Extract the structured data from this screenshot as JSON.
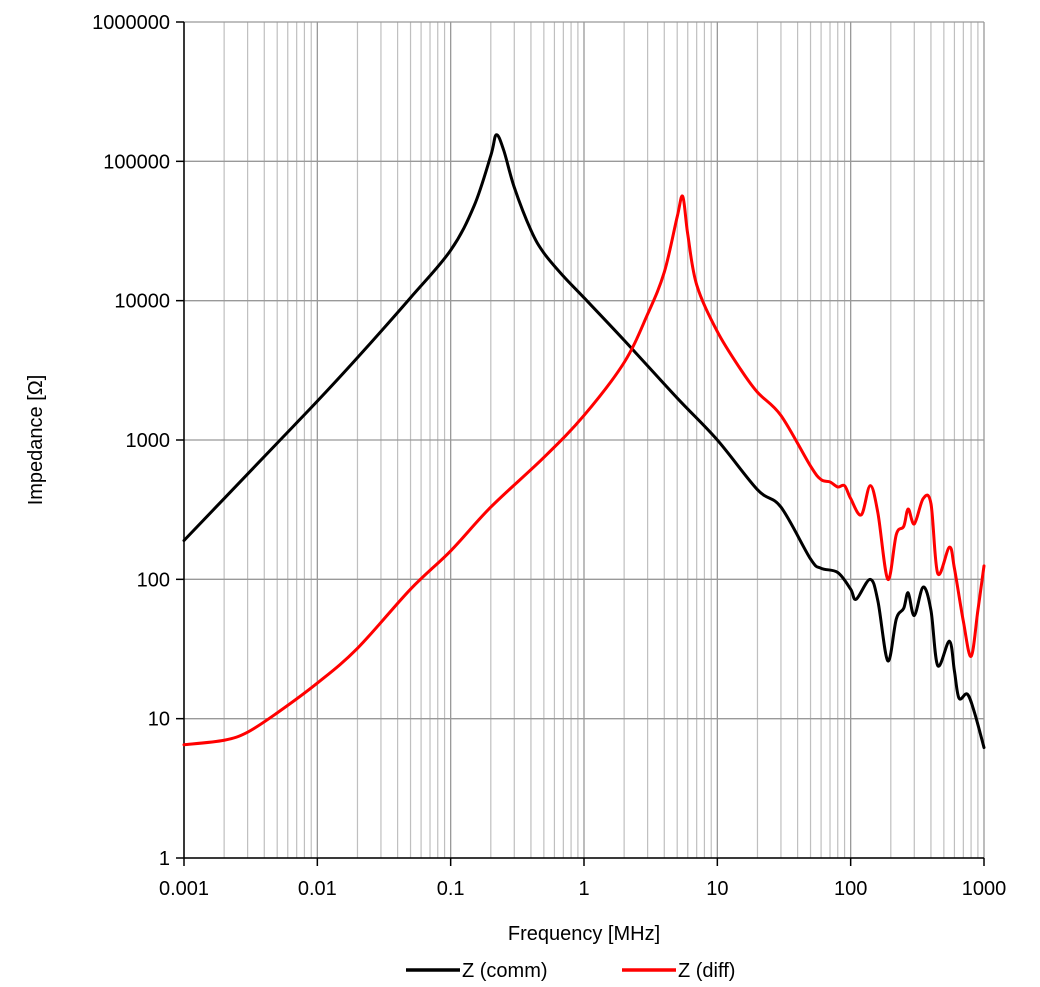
{
  "chart_data": {
    "type": "line",
    "title": "",
    "xlabel": "Frequency [MHz]",
    "ylabel": "Impedance [Ω]",
    "xscale": "log",
    "yscale": "log",
    "xlim": [
      0.001,
      1000
    ],
    "ylim": [
      1,
      1000000
    ],
    "grid": true,
    "legend_position": "bottom",
    "x_ticks": [
      "0.001",
      "0.01",
      "0.1",
      "1",
      "10",
      "100",
      "1000"
    ],
    "y_ticks": [
      "1",
      "10",
      "100",
      "1000",
      "10000",
      "100000",
      "1000000"
    ],
    "series": [
      {
        "name": "Z (comm)",
        "color": "#000000",
        "points": [
          [
            0.001,
            190
          ],
          [
            0.002,
            380
          ],
          [
            0.005,
            950
          ],
          [
            0.01,
            1900
          ],
          [
            0.02,
            3900
          ],
          [
            0.05,
            10500
          ],
          [
            0.1,
            23000
          ],
          [
            0.15,
            48000
          ],
          [
            0.2,
            110000
          ],
          [
            0.22,
            155000
          ],
          [
            0.25,
            120000
          ],
          [
            0.3,
            65000
          ],
          [
            0.4,
            32000
          ],
          [
            0.5,
            22000
          ],
          [
            0.7,
            15000
          ],
          [
            1,
            10500
          ],
          [
            2,
            5200
          ],
          [
            5,
            2000
          ],
          [
            10,
            1000
          ],
          [
            20,
            440
          ],
          [
            30,
            330
          ],
          [
            50,
            140
          ],
          [
            60,
            120
          ],
          [
            80,
            112
          ],
          [
            100,
            85
          ],
          [
            110,
            72
          ],
          [
            140,
            100
          ],
          [
            160,
            70
          ],
          [
            190,
            26
          ],
          [
            220,
            52
          ],
          [
            250,
            62
          ],
          [
            270,
            80
          ],
          [
            300,
            55
          ],
          [
            350,
            88
          ],
          [
            400,
            60
          ],
          [
            450,
            24
          ],
          [
            550,
            36
          ],
          [
            600,
            22
          ],
          [
            650,
            14
          ],
          [
            750,
            15
          ],
          [
            850,
            11
          ],
          [
            1000,
            6.2
          ]
        ]
      },
      {
        "name": "Z (diff)",
        "color": "#ff0000",
        "points": [
          [
            0.001,
            6.5
          ],
          [
            0.002,
            7
          ],
          [
            0.003,
            8
          ],
          [
            0.005,
            11
          ],
          [
            0.01,
            18
          ],
          [
            0.02,
            32
          ],
          [
            0.05,
            85
          ],
          [
            0.1,
            160
          ],
          [
            0.2,
            330
          ],
          [
            0.5,
            750
          ],
          [
            1,
            1500
          ],
          [
            2,
            3600
          ],
          [
            3,
            8000
          ],
          [
            4,
            16000
          ],
          [
            5,
            40000
          ],
          [
            5.5,
            56000
          ],
          [
            6,
            30000
          ],
          [
            7,
            13000
          ],
          [
            10,
            6000
          ],
          [
            15,
            3200
          ],
          [
            20,
            2200
          ],
          [
            30,
            1500
          ],
          [
            50,
            650
          ],
          [
            60,
            520
          ],
          [
            70,
            500
          ],
          [
            80,
            460
          ],
          [
            90,
            470
          ],
          [
            100,
            380
          ],
          [
            120,
            290
          ],
          [
            140,
            470
          ],
          [
            160,
            300
          ],
          [
            190,
            100
          ],
          [
            220,
            210
          ],
          [
            250,
            240
          ],
          [
            270,
            320
          ],
          [
            300,
            250
          ],
          [
            350,
            380
          ],
          [
            400,
            350
          ],
          [
            450,
            110
          ],
          [
            550,
            170
          ],
          [
            600,
            120
          ],
          [
            700,
            50
          ],
          [
            800,
            28
          ],
          [
            900,
            60
          ],
          [
            1000,
            125
          ]
        ]
      }
    ]
  }
}
